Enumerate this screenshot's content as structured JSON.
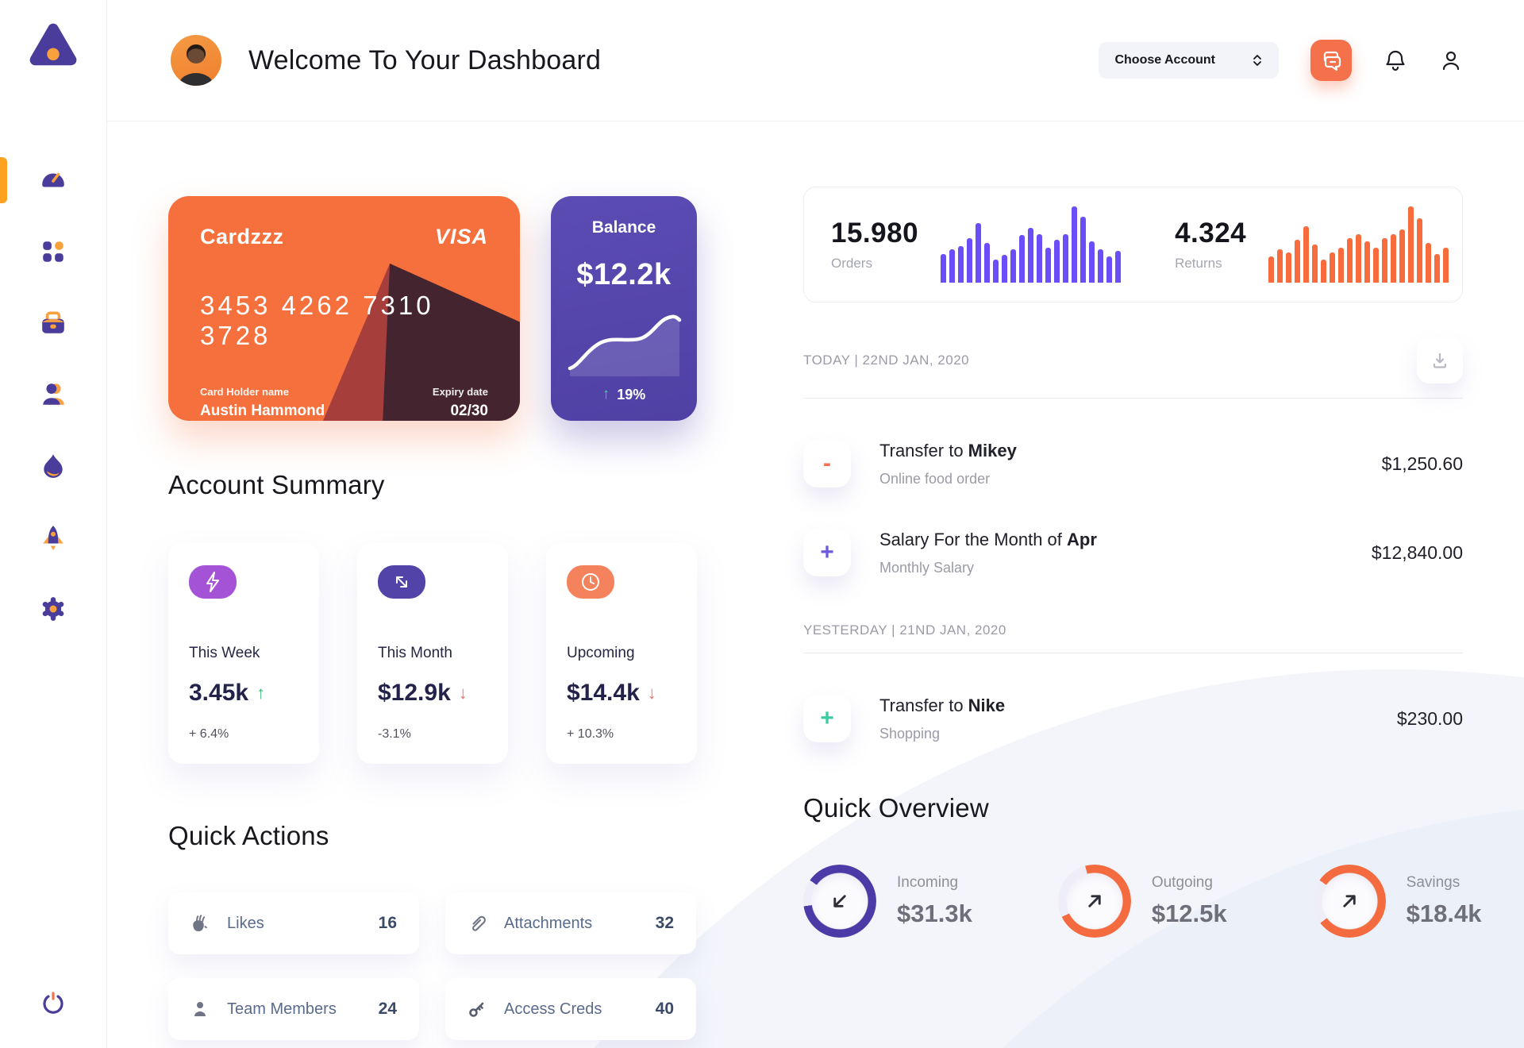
{
  "colors": {
    "orange": "#F5703C",
    "purple": "#5546AB",
    "indigo_icon": "#4A3C9B",
    "accent_amber": "#F9A13D",
    "bar_purple": "#6B4EF8",
    "bar_orange": "#F76B3C",
    "green": "#3BB77E",
    "red": "#F36A6A",
    "teal": "#3BCBA4"
  },
  "sidebar": {
    "items": [
      {
        "icon": "speedometer-icon",
        "label": "dashboard",
        "active": true
      },
      {
        "icon": "apps-grid-icon",
        "label": "apps",
        "active": false
      },
      {
        "icon": "briefcase-icon",
        "label": "work",
        "active": false
      },
      {
        "icon": "customers-icon",
        "label": "customers",
        "active": false
      },
      {
        "icon": "flame-icon",
        "label": "trending",
        "active": false
      },
      {
        "icon": "rocket-icon",
        "label": "launch",
        "active": false
      },
      {
        "icon": "gear-icon",
        "label": "settings",
        "active": false
      }
    ],
    "logout_icon": "power-icon"
  },
  "header": {
    "title": "Welcome To Your Dashboard",
    "account_dropdown": "Choose Account"
  },
  "credit_card": {
    "name": "Cardzzz",
    "brand": "VISA",
    "number": "3453 4262 7310 3728",
    "holder_label": "Card Holder name",
    "holder": "Austin Hammond",
    "expiry_label": "Expiry date",
    "expiry": "02/30"
  },
  "balance": {
    "label": "Balance",
    "value": "$12.2k",
    "delta": "19%"
  },
  "chart_data": [
    {
      "type": "bar",
      "title": "Orders mini bar chart",
      "legend_position": "none",
      "values": [
        38,
        44,
        48,
        58,
        78,
        52,
        30,
        36,
        44,
        62,
        72,
        64,
        46,
        56,
        64,
        100,
        86,
        54,
        44,
        34,
        42
      ],
      "color": "#6B4EF8"
    },
    {
      "type": "bar",
      "title": "Returns mini bar chart",
      "legend_position": "none",
      "values": [
        34,
        44,
        40,
        56,
        74,
        50,
        30,
        40,
        46,
        58,
        64,
        54,
        46,
        58,
        64,
        70,
        100,
        84,
        52,
        38,
        46
      ],
      "color": "#F76B3C"
    },
    {
      "type": "line",
      "title": "Balance sparkline",
      "color": "#FFFFFF",
      "values": [
        10,
        14,
        22,
        38,
        50,
        52,
        52,
        53,
        58,
        70,
        82,
        84,
        80
      ]
    }
  ],
  "stats": {
    "orders": {
      "value": "15.980",
      "label": "Orders"
    },
    "returns": {
      "value": "4.324",
      "label": "Returns"
    }
  },
  "account_summary": {
    "title": "Account Summary",
    "cards": [
      {
        "icon": "lightning-icon",
        "icon_bg": "#A453D6",
        "label": "This Week",
        "value": "3.45k",
        "trend": "up",
        "delta": "+ 6.4%"
      },
      {
        "icon": "trend-arrows-icon",
        "icon_bg": "#5243A8",
        "label": "This Month",
        "value": "$12.9k",
        "trend": "down",
        "delta": "-3.1%"
      },
      {
        "icon": "clock-icon",
        "icon_bg": "#F4835D",
        "label": "Upcoming",
        "value": "$14.4k",
        "trend": "down",
        "delta": "+ 10.3%"
      }
    ]
  },
  "quick_actions": {
    "title": "Quick Actions",
    "items": [
      {
        "icon": "clap-icon",
        "label": "Likes",
        "count": "16"
      },
      {
        "icon": "paperclip-icon",
        "label": "Attachments",
        "count": "32"
      },
      {
        "icon": "member-icon",
        "label": "Team Members",
        "count": "24"
      },
      {
        "icon": "key-icon",
        "label": "Access Creds",
        "count": "40"
      }
    ]
  },
  "transactions": {
    "groups": [
      {
        "date": "TODAY | 22ND JAN, 2020",
        "rows": [
          {
            "sign": "-",
            "sign_color": "#F4724B",
            "title_prefix": "Transfer to ",
            "title_bold": "Mikey",
            "subtitle": "Online food order",
            "amount": "$1,250.60"
          },
          {
            "sign": "+",
            "sign_color": "#6A5AE0",
            "title_prefix": "Salary For the Month of ",
            "title_bold": "Apr",
            "subtitle": "Monthly Salary",
            "amount": "$12,840.00"
          }
        ]
      },
      {
        "date": "YESTERDAY | 21ND JAN, 2020",
        "rows": [
          {
            "sign": "+",
            "sign_color": "#3BCBA4",
            "title_prefix": "Transfer to ",
            "title_bold": "Nike",
            "subtitle": "Shopping",
            "amount": "$230.00"
          }
        ]
      }
    ]
  },
  "quick_overview": {
    "title": "Quick Overview",
    "items": [
      {
        "label": "Incoming",
        "value": "$31.3k",
        "ring_color": "#4C3AA6",
        "percent": 88,
        "start_deg": -55,
        "arrow": "in"
      },
      {
        "label": "Outgoing",
        "value": "$12.5k",
        "ring_color": "#F46B3F",
        "percent": 72,
        "start_deg": -15,
        "arrow": "out"
      },
      {
        "label": "Savings",
        "value": "$18.4k",
        "ring_color": "#F46B3F",
        "percent": 80,
        "start_deg": -55,
        "arrow": "out"
      }
    ]
  }
}
